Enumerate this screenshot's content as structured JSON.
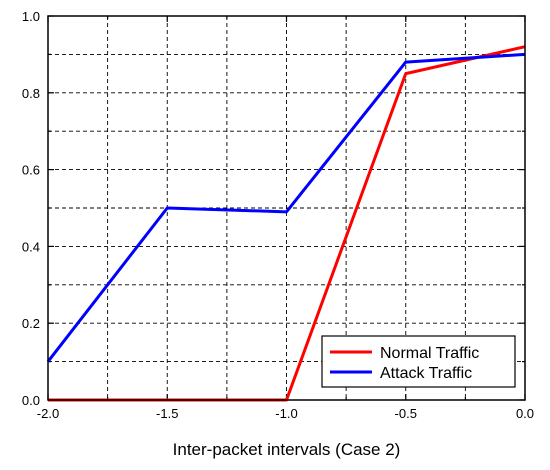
{
  "chart_data": {
    "type": "line",
    "xlabel": "Inter-packet intervals (Case 2)",
    "ylabel": "",
    "xlim": [
      -2.0,
      0.0
    ],
    "ylim": [
      0.0,
      1.0
    ],
    "x_ticks": [
      -2.0,
      -1.5,
      -1.0,
      -0.5,
      0.0
    ],
    "x_tick_labels": [
      "-2.0",
      "-1.5",
      "-1.0",
      "-0.5",
      "0.0"
    ],
    "y_ticks": [
      0.0,
      0.2,
      0.4,
      0.6,
      0.8,
      1.0
    ],
    "y_tick_labels": [
      "0.0",
      "0.2",
      "0.4",
      "0.6",
      "0.8",
      "1.0"
    ],
    "grid": true,
    "grid_style": "dashed",
    "legend_position": "bottom-right",
    "series": [
      {
        "name": "Normal Traffic",
        "color": "#ff0000",
        "x": [
          -2.0,
          -1.5,
          -1.0,
          -0.5,
          0.0
        ],
        "y": [
          0.0,
          0.0,
          0.0,
          0.85,
          0.92
        ]
      },
      {
        "name": "Attack Traffic",
        "color": "#0000ff",
        "x": [
          -2.0,
          -1.5,
          -1.0,
          -0.5,
          0.0
        ],
        "y": [
          0.1,
          0.5,
          0.49,
          0.88,
          0.9
        ]
      }
    ]
  }
}
